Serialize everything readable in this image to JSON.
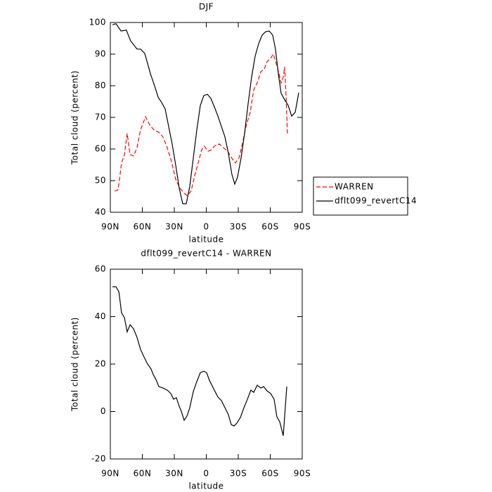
{
  "chart_data": [
    {
      "type": "line",
      "title": "DJF",
      "x_label": "latitude",
      "y_label": "Total cloud (percent)",
      "xlim": [
        90,
        -90
      ],
      "ylim": [
        40,
        100
      ],
      "xticks": [
        {
          "value": 90,
          "label": "90N"
        },
        {
          "value": 60,
          "label": "60N"
        },
        {
          "value": 30,
          "label": "30N"
        },
        0,
        {
          "value": -30,
          "label": "30S"
        },
        {
          "value": -60,
          "label": "60S"
        },
        {
          "value": -90,
          "label": "90S"
        }
      ],
      "yticks": [
        40,
        50,
        60,
        70,
        80,
        90,
        100
      ],
      "legend": "right",
      "series": [
        {
          "name": "WARREN",
          "color": "#ff0000",
          "linestyle": "dashed",
          "x": [
            86,
            82.7,
            79.5,
            76.8,
            74.2,
            71.5,
            68.2,
            65,
            61.7,
            57,
            53,
            48.5,
            44.5,
            40.6,
            36.6,
            32.6,
            28.7,
            24.7,
            20.8,
            18.1,
            14.2,
            10.9,
            7.6,
            4.3,
            1.7,
            -1.6,
            -4.3,
            -7.6,
            -12.2,
            -16.1,
            -20.1,
            -24,
            -27.3,
            -30.6,
            -33.9,
            -37.2,
            -41.2,
            -44.5,
            -47.8,
            -51.1,
            -54.4,
            -57,
            -60.3,
            -62.9,
            -65.6,
            -68.2,
            -70.2,
            -72.2,
            -73.5,
            -74.8,
            -76.1
          ],
          "values": [
            46.7,
            47.1,
            55.6,
            58.2,
            64.9,
            58.2,
            57.8,
            60.4,
            66,
            70.2,
            67.6,
            65.8,
            65.3,
            63.8,
            60.4,
            56,
            50.4,
            47.6,
            46,
            45.3,
            46.7,
            51.6,
            55.6,
            59.8,
            60.9,
            59.3,
            59.6,
            60.9,
            61.6,
            60.4,
            59.3,
            57.1,
            55.6,
            57.1,
            61.6,
            67.1,
            71.6,
            78.7,
            80.9,
            84.4,
            85.3,
            87.6,
            88.7,
            90,
            87.1,
            83.8,
            80.9,
            82.7,
            86,
            77.1,
            64.9
          ]
        },
        {
          "name": "dflt099_revertC14",
          "color": "#000000",
          "linestyle": "solid",
          "x": [
            88,
            84.7,
            80,
            75,
            71,
            65,
            61.7,
            57.7,
            52.4,
            48.5,
            45.2,
            41.9,
            38.6,
            35.3,
            32,
            28.7,
            25.4,
            22.1,
            18.8,
            15.5,
            12.2,
            8.9,
            5.6,
            2.3,
            -1,
            -4.3,
            -7.6,
            -10.9,
            -14.2,
            -17.5,
            -20.7,
            -24,
            -26.7,
            -29.3,
            -32.6,
            -35.9,
            -39.2,
            -42.5,
            -45.8,
            -49.1,
            -52.4,
            -55.7,
            -59,
            -62.3,
            -64.9,
            -67.6,
            -70.2,
            -73.5,
            -76.8,
            -80.1,
            -83.4,
            -86.7
          ],
          "values": [
            99.3,
            99.6,
            97.3,
            97.6,
            94.2,
            91.6,
            91.6,
            90.2,
            83.8,
            80,
            76.4,
            74.7,
            72.7,
            67.1,
            61.6,
            54.9,
            47.6,
            42.7,
            42.7,
            48.2,
            57.1,
            66,
            73.8,
            76.9,
            77.3,
            76,
            73.3,
            70.4,
            67.1,
            63.8,
            58.7,
            52,
            48.9,
            51.1,
            57.1,
            64.9,
            74.2,
            82.7,
            89.3,
            93.3,
            96,
            97.1,
            97.3,
            96,
            91.6,
            83.8,
            77.6,
            75.6,
            73.8,
            70.4,
            71.6,
            77.8
          ]
        }
      ]
    },
    {
      "type": "line",
      "title": "dflt099_revertC14 - WARREN",
      "x_label": "latitude",
      "y_label": "Total cloud (percent)",
      "xlim": [
        90,
        -90
      ],
      "ylim": [
        -20,
        60
      ],
      "xticks": [
        {
          "value": 90,
          "label": "90N"
        },
        {
          "value": 60,
          "label": "60N"
        },
        {
          "value": 30,
          "label": "30N"
        },
        0,
        {
          "value": -30,
          "label": "30S"
        },
        {
          "value": -60,
          "label": "60S"
        },
        {
          "value": -90,
          "label": "90S"
        }
      ],
      "yticks": [
        -20,
        0,
        20,
        40,
        60
      ],
      "series": [
        {
          "color": "#000000",
          "linestyle": "solid",
          "x": [
            88,
            84.7,
            82,
            79.5,
            76.8,
            74.2,
            71.5,
            68.2,
            65,
            61.7,
            58.4,
            55.1,
            51.8,
            49.8,
            47.2,
            44.5,
            40.6,
            36.6,
            33.3,
            30.7,
            28,
            25.4,
            23.4,
            20.8,
            18.1,
            15.5,
            12.2,
            8.9,
            5.6,
            2.3,
            -0.3,
            -2.9,
            -6.9,
            -10.9,
            -14.2,
            -17.5,
            -20.7,
            -23.4,
            -26,
            -28.7,
            -32,
            -35.3,
            -38.6,
            -41.8,
            -44.5,
            -47.8,
            -51.1,
            -53.8,
            -57,
            -60.3,
            -63.6,
            -66.2,
            -68.9,
            -72.2,
            -75.5
          ],
          "values": [
            52.6,
            52.6,
            50.5,
            41.6,
            39.6,
            33.6,
            36.6,
            34.8,
            31.3,
            26.2,
            23,
            20,
            17.9,
            15.6,
            13.5,
            10.5,
            9.9,
            9,
            7.6,
            5.2,
            5.8,
            2.2,
            0.1,
            -3.7,
            -1.9,
            1.6,
            8.4,
            12.6,
            16.4,
            17,
            16.4,
            13.2,
            9.6,
            6.1,
            4.6,
            1.6,
            -1.3,
            -5.5,
            -6.1,
            -4.9,
            -2.5,
            1.6,
            5.2,
            9,
            8.1,
            11.1,
            9.9,
            10.5,
            8.7,
            7.6,
            5.2,
            -2.2,
            -4.3,
            -10.2,
            10.5
          ]
        }
      ]
    }
  ]
}
